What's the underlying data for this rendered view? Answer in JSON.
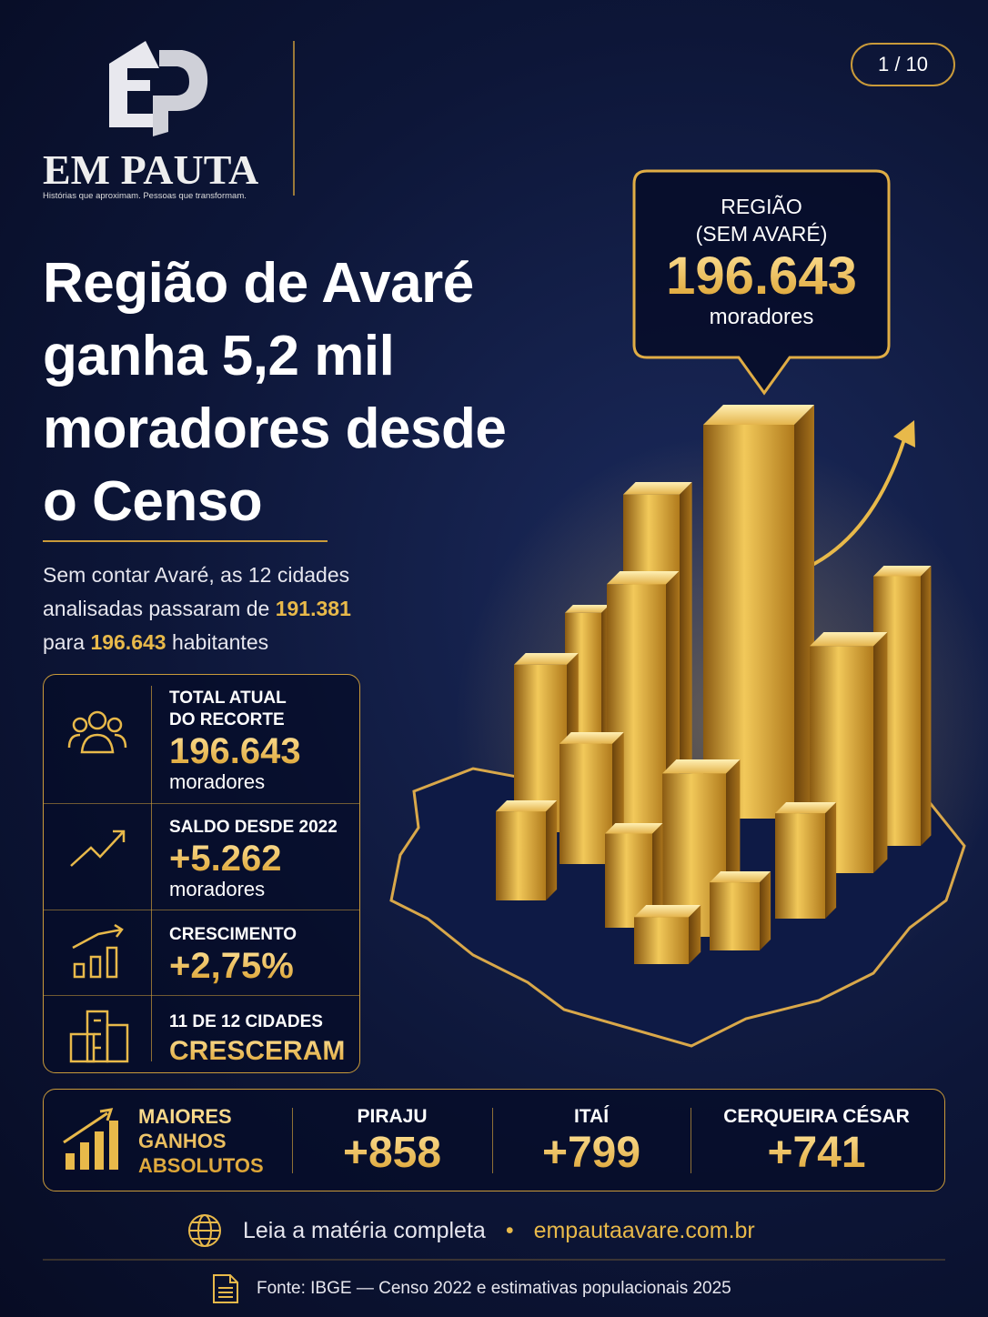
{
  "logo": {
    "title": "EM PAUTA",
    "tagline": "Histórias que aproximam. Pessoas que transformam."
  },
  "page_indicator": "1 / 10",
  "headline": [
    "Região de Avaré",
    "ganha 5,2 mil",
    "moradores desde",
    "o Censo"
  ],
  "subtitle": {
    "lead": "Sem contar Avaré, as 12 cidades analisadas passaram de",
    "from": "191.381",
    "mid": "para",
    "to": "196.643",
    "tail": "habitantes"
  },
  "callout": {
    "label": [
      "REGIÃO",
      "(SEM AVARÉ)"
    ],
    "value": "196.643",
    "unit": "moradores"
  },
  "stats": [
    {
      "label": [
        "TOTAL ATUAL",
        "DO RECORTE"
      ],
      "value": "196.643",
      "unit": "moradores"
    },
    {
      "label": [
        "SALDO DESDE 2022"
      ],
      "value": "+5.262",
      "unit": "moradores"
    },
    {
      "label": [
        "CRESCIMENTO"
      ],
      "value": "+2,75%"
    },
    {
      "label": [
        "11 DE 12 CIDADES"
      ],
      "value": "CRESCERAM"
    }
  ],
  "top_gains": {
    "title": [
      "MAIORES",
      "GANHOS",
      "ABSOLUTOS"
    ],
    "items": [
      {
        "city": "PIRAJU",
        "value": "+858"
      },
      {
        "city": "ITAÍ",
        "value": "+799"
      },
      {
        "city": "CERQUEIRA CÉSAR",
        "value": "+741"
      }
    ]
  },
  "footer": {
    "read_more": "Leia a matéria completa",
    "separator": "•",
    "url": "empautaavare.com.br",
    "source": "Fonte: IBGE — Censo 2022 e estimativas populacionais 2025"
  }
}
